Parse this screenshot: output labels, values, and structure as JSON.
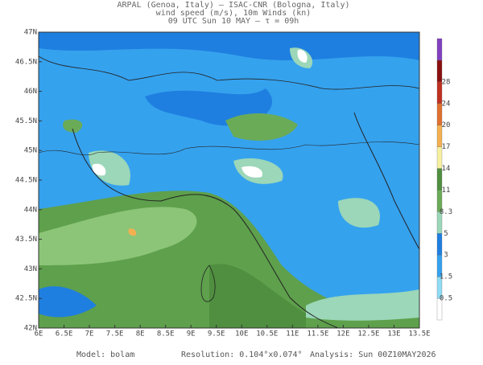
{
  "header": {
    "lines": [
      "ARPAL (Genoa, Italy)  –  ISAC-CNR (Bologna, Italy)",
      "wind speed (m/s), 10m Winds (kn)",
      "09 UTC Sun 10 MAY  –  τ = 09h"
    ]
  },
  "map": {
    "lat_labels": [
      "47N",
      "46.5N",
      "46N",
      "45.5N",
      "45N",
      "44.5N",
      "44N",
      "43.5N",
      "43N",
      "42.5N",
      "42N"
    ],
    "lon_labels": [
      "6E",
      "6.5E",
      "7E",
      "7.5E",
      "8E",
      "8.5E",
      "9E",
      "9.5E",
      "10E",
      "10.5E",
      "11E",
      "11.5E",
      "12E",
      "12.5E",
      "13E",
      "13.5E"
    ]
  },
  "colorbar": {
    "labels": [
      "28",
      "24",
      "20",
      "17",
      "14",
      "11",
      "8.3",
      "5",
      "3",
      "1.5",
      "0.5"
    ]
  },
  "footer": {
    "model": "Model:  bolam",
    "resolution": "Resolution:  0.104°x0.074°",
    "analysis": "Analysis:  Sun  00Z10MAY2026"
  }
}
